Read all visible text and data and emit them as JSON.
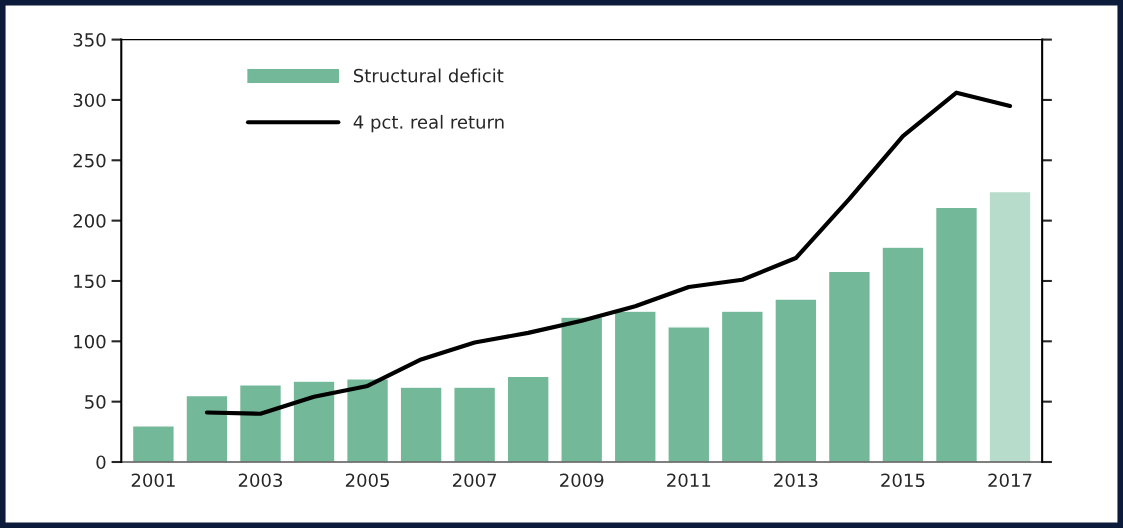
{
  "chart_data": {
    "type": "bar",
    "categories": [
      "2001",
      null,
      "2003",
      null,
      "2005",
      null,
      "2007",
      null,
      "2009",
      null,
      "2011",
      null,
      "2013",
      null,
      "2015",
      null,
      "2017"
    ],
    "series": [
      {
        "name": "Structural deficit",
        "color": "#74b89a",
        "colors": [
          "#74b89a",
          "#74b89a",
          "#74b89a",
          "#74b89a",
          "#74b89a",
          "#74b89a",
          "#74b89a",
          "#74b89a",
          "#74b89a",
          "#74b89a",
          "#74b89a",
          "#74b89a",
          "#74b89a",
          "#74b89a",
          "#74b89a",
          "#74b89a",
          "#b7dccb"
        ],
        "values": [
          30,
          55,
          64,
          67,
          69,
          62,
          62,
          71,
          120,
          125,
          112,
          125,
          135,
          158,
          178,
          211,
          224
        ]
      },
      {
        "name": "4 pct. real return",
        "type": "line",
        "color": "#000000",
        "values": [
          null,
          41,
          40,
          54,
          63,
          85,
          99,
          107,
          117,
          129,
          145,
          151,
          169,
          218,
          270,
          306,
          295
        ]
      }
    ],
    "ylim": [
      0,
      350
    ],
    "yticks": [
      0,
      50,
      100,
      150,
      200,
      250,
      300,
      350
    ],
    "grid": false,
    "legend": "top left",
    "marker": "none",
    "line_style": "solid"
  }
}
